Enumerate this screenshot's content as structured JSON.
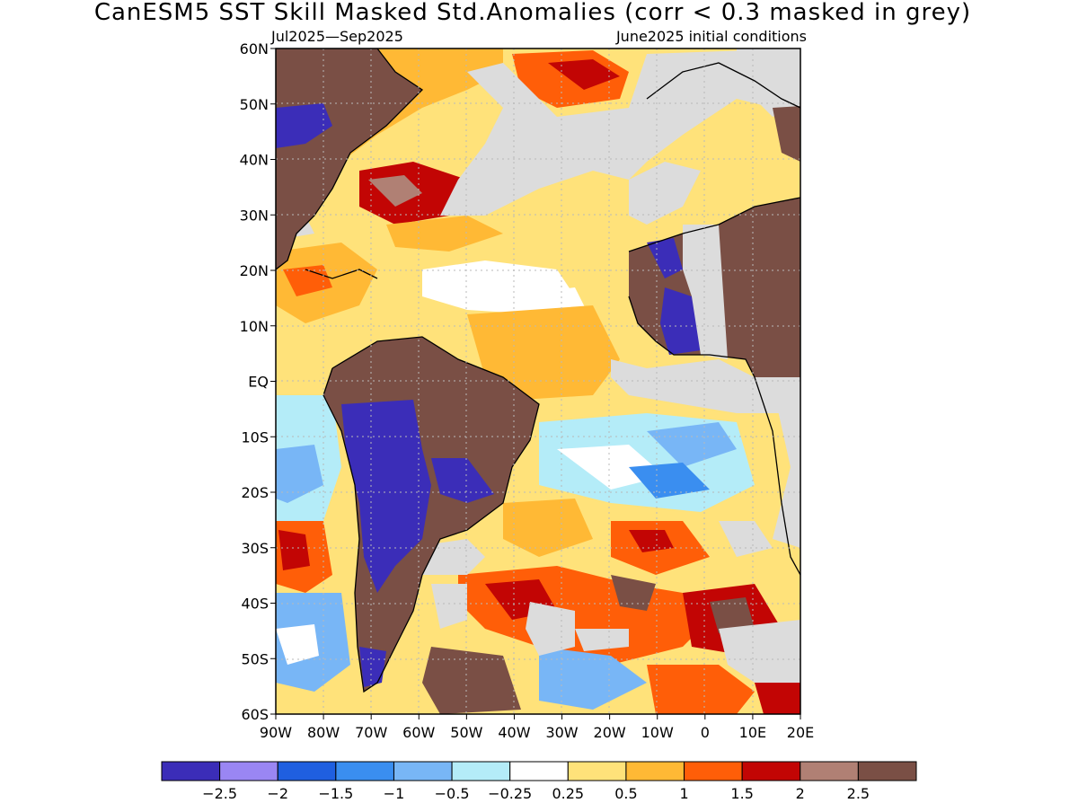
{
  "title": "CanESM5  SST Skill Masked Std.Anomalies (corr < 0.3 masked in grey)",
  "subtitle_left": "Jul2025—Sep2025",
  "subtitle_right": "June2025 initial conditions",
  "map": {
    "lat_range": [
      -60,
      60
    ],
    "lon_range": [
      -90,
      20
    ],
    "lat_ticks": [
      "60N",
      "50N",
      "40N",
      "30N",
      "20N",
      "10N",
      "EQ",
      "10S",
      "20S",
      "30S",
      "40S",
      "50S",
      "60S"
    ],
    "lon_ticks": [
      "90W",
      "80W",
      "70W",
      "60W",
      "50W",
      "40W",
      "30W",
      "20W",
      "10W",
      "0",
      "10E",
      "20E"
    ],
    "mask_color": "#dcdcdc",
    "land_color": "#7a4f45",
    "coast_color": "#000000",
    "gridlines": "dotted"
  },
  "colorbar": {
    "colors": [
      "#3b2db8",
      "#9a86f3",
      "#1f5fe0",
      "#3a8ef0",
      "#78b6f6",
      "#b4ecf8",
      "#ffffff",
      "#ffe27a",
      "#ffb935",
      "#ff5e08",
      "#c20504",
      "#b08074",
      "#7a4f45"
    ],
    "labels": [
      "−2.5",
      "−2",
      "−1.5",
      "−1",
      "−0.5",
      "−0.25",
      "0.25",
      "0.5",
      "1",
      "1.5",
      "2",
      "2.5"
    ]
  }
}
